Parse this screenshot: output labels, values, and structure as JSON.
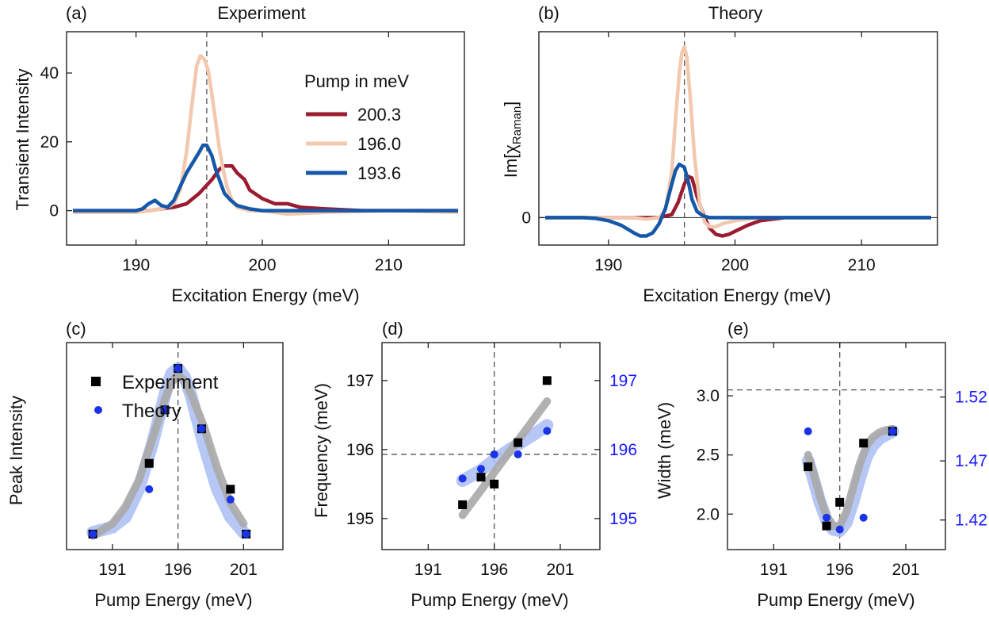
{
  "panels": {
    "a": {
      "tag": "(a)",
      "title": "Experiment",
      "xlabel": "Excitation Energy (meV)",
      "ylabel": "Transient Intensity"
    },
    "b": {
      "tag": "(b)",
      "title": "Theory",
      "xlabel": "Excitation Energy (meV)",
      "ylabel_main": "Im[χ",
      "ylabel_sub": "Raman",
      "ylabel_end": "]"
    },
    "c": {
      "tag": "(c)",
      "xlabel": "Pump Energy (meV)",
      "ylabel": "Peak Intensity"
    },
    "d": {
      "tag": "(d)",
      "xlabel": "Pump Energy (meV)",
      "ylabel": "Frequency (meV)"
    },
    "e": {
      "tag": "(e)",
      "xlabel": "Pump Energy (meV)",
      "ylabel": "Width (meV)"
    }
  },
  "colors": {
    "red": "#9b1b30",
    "peach": "#f2c8ae",
    "blue": "#1557a8",
    "gray": "#a8a8a8",
    "lightblue": "#a9bdf5",
    "marker_blue": "#1a33e6",
    "right_axis": "#1a1aff"
  },
  "chart_data": [
    {
      "id": "a",
      "type": "line",
      "title": "Experiment",
      "xlabel": "Excitation Energy (meV)",
      "ylabel": "Transient Intensity",
      "xlim": [
        184.5,
        216
      ],
      "ylim": [
        -10,
        52
      ],
      "xticks": [
        190,
        200,
        210
      ],
      "yticks": [
        0,
        20,
        40
      ],
      "vline_x": 195.6,
      "legend": {
        "title": "Pump in meV",
        "placement": "top-right",
        "entries": [
          "200.3",
          "196.0",
          "193.6"
        ]
      },
      "series": [
        {
          "name": "200.3",
          "color": "#9b1b30",
          "x": [
            185,
            187,
            189,
            191,
            192,
            193,
            194,
            195,
            196,
            196.6,
            197,
            197.6,
            198,
            198.6,
            199,
            200,
            201,
            202,
            203,
            205,
            208,
            212,
            215.5
          ],
          "y": [
            0,
            0,
            0,
            0,
            0.5,
            1,
            2,
            5,
            9,
            12,
            13,
            13,
            11,
            9,
            6,
            3.5,
            2,
            2,
            1,
            0.5,
            0,
            0,
            0
          ]
        },
        {
          "name": "196.0",
          "color": "#f2c8ae",
          "x": [
            185,
            188,
            190,
            191,
            192,
            192.5,
            193,
            193.5,
            194,
            194.4,
            194.8,
            195.1,
            195.4,
            195.7,
            196,
            196.3,
            196.6,
            196.9,
            197.2,
            197.6,
            198,
            199,
            200,
            201,
            202,
            205,
            210,
            215.5
          ],
          "y": [
            -0.5,
            -0.5,
            -0.5,
            0,
            0.5,
            1,
            2,
            6,
            17,
            30,
            42,
            45,
            44,
            41,
            34,
            26,
            18,
            12,
            7,
            3,
            1,
            0,
            0,
            -0.5,
            -1,
            -0.5,
            0,
            -0.5
          ]
        },
        {
          "name": "193.6",
          "color": "#1557a8",
          "x": [
            185,
            188,
            190,
            190.5,
            191,
            191.5,
            192,
            192.5,
            193,
            193.5,
            194,
            194.5,
            195,
            195.3,
            195.6,
            196,
            196.3,
            196.7,
            197,
            197.5,
            198,
            199,
            200,
            203,
            208,
            212,
            215.5
          ],
          "y": [
            0,
            0,
            0,
            0.5,
            2,
            3,
            1.5,
            1,
            3,
            7,
            11,
            14,
            17,
            19,
            19,
            16,
            12,
            8,
            5,
            3,
            1.5,
            0.5,
            0,
            0,
            0,
            0,
            0
          ]
        }
      ]
    },
    {
      "id": "b",
      "type": "line",
      "title": "Theory",
      "xlabel": "Excitation Energy (meV)",
      "ylabel": "Im[χRaman]",
      "xlim": [
        184.5,
        216
      ],
      "ylim": [
        -0.18,
        1.22
      ],
      "xticks": [
        190,
        200,
        210
      ],
      "yticks": [
        0
      ],
      "vline_x": 196,
      "series": [
        {
          "name": "200.3",
          "color": "#9b1b30",
          "x": [
            185,
            194,
            195,
            195.5,
            196,
            196.3,
            196.6,
            197,
            197.5,
            198,
            198.5,
            199,
            199.5,
            200,
            201,
            202,
            203,
            204,
            206,
            210,
            215.5
          ],
          "y": [
            0,
            0,
            0.02,
            0.1,
            0.22,
            0.27,
            0.26,
            0.14,
            0.02,
            -0.07,
            -0.11,
            -0.12,
            -0.11,
            -0.09,
            -0.05,
            -0.02,
            -0.01,
            0,
            0,
            0,
            0
          ]
        },
        {
          "name": "196.0",
          "color": "#f2c8ae",
          "x": [
            185,
            192,
            193,
            194,
            194.5,
            195,
            195.3,
            195.6,
            195.8,
            196,
            196.2,
            196.5,
            196.8,
            197.2,
            197.6,
            198,
            198.5,
            199,
            200,
            201,
            202,
            205,
            210,
            215.5
          ],
          "y": [
            0,
            0,
            -0.01,
            0,
            0.05,
            0.3,
            0.65,
            0.95,
            1.08,
            1.12,
            1.05,
            0.75,
            0.4,
            0.1,
            -0.03,
            -0.06,
            -0.06,
            -0.04,
            -0.02,
            -0.01,
            0,
            0,
            0,
            0
          ]
        },
        {
          "name": "193.6",
          "color": "#1557a8",
          "x": [
            185,
            188,
            189,
            190,
            191,
            192,
            192.5,
            193,
            193.5,
            194,
            194.5,
            195,
            195.3,
            195.6,
            196,
            196.3,
            196.6,
            197,
            197.5,
            198,
            199,
            200,
            205,
            215.5
          ],
          "y": [
            0,
            0,
            -0.005,
            -0.02,
            -0.05,
            -0.1,
            -0.12,
            -0.12,
            -0.1,
            -0.04,
            0.06,
            0.22,
            0.31,
            0.35,
            0.33,
            0.24,
            0.12,
            0.04,
            0.01,
            0,
            0,
            0,
            0,
            0
          ]
        }
      ]
    },
    {
      "id": "c",
      "type": "scatter",
      "xlabel": "Pump Energy (meV)",
      "ylabel": "Peak Intensity",
      "xlim": [
        187.5,
        204
      ],
      "ylim": [
        -0.05,
        1.15
      ],
      "xticks": [
        191,
        196,
        201
      ],
      "vline_x": 196,
      "legend": {
        "placement": "top-left",
        "entries": [
          "Experiment",
          "Theory"
        ]
      },
      "series": [
        {
          "name": "Experiment",
          "marker": "square",
          "color": "#000000",
          "x": [
            189.5,
            193.8,
            195,
            196,
            197.8,
            200,
            201.2
          ],
          "y": [
            0.04,
            0.45,
            0.76,
            1.0,
            0.65,
            0.3,
            0.04
          ]
        },
        {
          "name": "Theory",
          "marker": "circle",
          "color": "#1a33e6",
          "x": [
            189.5,
            193.8,
            195,
            196,
            197.8,
            200,
            201.2
          ],
          "y": [
            0.04,
            0.3,
            0.76,
            1.0,
            0.65,
            0.24,
            0.04
          ]
        }
      ],
      "fits": [
        {
          "color": "#a9bdf5",
          "x": [
            189.5,
            191,
            192,
            193,
            194,
            195,
            195.5,
            196,
            196.5,
            197,
            198,
            199,
            200,
            201
          ],
          "y": [
            0.05,
            0.08,
            0.14,
            0.3,
            0.55,
            0.85,
            0.97,
            1.0,
            0.95,
            0.84,
            0.55,
            0.3,
            0.14,
            0.05
          ]
        },
        {
          "color": "#a8a8a8",
          "x": [
            189.5,
            191,
            192,
            193,
            194,
            195,
            195.5,
            196,
            196.5,
            197,
            198,
            199,
            200,
            201
          ],
          "y": [
            0.03,
            0.1,
            0.2,
            0.35,
            0.58,
            0.82,
            0.92,
            0.96,
            0.93,
            0.85,
            0.66,
            0.42,
            0.22,
            0.1
          ]
        }
      ]
    },
    {
      "id": "d",
      "type": "scatter",
      "xlabel": "Pump Energy (meV)",
      "ylabel": "Frequency (meV)",
      "xlim": [
        187.5,
        204
      ],
      "ylim": [
        194.55,
        197.55
      ],
      "xticks": [
        191,
        196,
        201
      ],
      "yticks": [
        195,
        196,
        197
      ],
      "y2ticks": [
        {
          "label": "195",
          "y": 195
        },
        {
          "label": "196",
          "y": 196
        },
        {
          "label": "197",
          "y": 197
        }
      ],
      "vline_x": 196,
      "hline_y": 195.93,
      "series": [
        {
          "name": "Experiment",
          "marker": "square",
          "color": "#000000",
          "x": [
            193.6,
            195,
            196,
            197.8,
            200
          ],
          "y": [
            195.2,
            195.6,
            195.5,
            196.1,
            197
          ]
        },
        {
          "name": "Theory",
          "marker": "circle",
          "color": "#1a33e6",
          "x": [
            193.6,
            195,
            196,
            197.8,
            200
          ],
          "y": [
            195.58,
            195.72,
            195.93,
            195.93,
            196.27
          ]
        }
      ],
      "fits": [
        {
          "color": "#a9bdf5",
          "x": [
            193.6,
            195,
            196,
            197,
            198,
            199,
            200
          ],
          "y": [
            195.55,
            195.7,
            195.85,
            195.98,
            196.1,
            196.22,
            196.35
          ]
        },
        {
          "color": "#a8a8a8",
          "x": [
            193.6,
            200
          ],
          "y": [
            195.05,
            196.7
          ]
        }
      ]
    },
    {
      "id": "e",
      "type": "scatter",
      "xlabel": "Pump Energy (meV)",
      "ylabel": "Width (meV)",
      "xlim": [
        187.5,
        204
      ],
      "ylim": [
        1.7,
        3.45
      ],
      "xticks": [
        191,
        196,
        201
      ],
      "yticks": [
        2.0,
        2.5,
        3.0
      ],
      "y2ticks": [
        {
          "label": "1.42",
          "y": 1.95
        },
        {
          "label": "1.47",
          "y": 2.45
        },
        {
          "label": "1.52",
          "y": 2.99
        }
      ],
      "vline_x": 196,
      "hline_y": 3.05,
      "series": [
        {
          "name": "Experiment",
          "marker": "square",
          "color": "#000000",
          "x": [
            193.6,
            195,
            196,
            197.8,
            200
          ],
          "y": [
            2.4,
            1.9,
            2.1,
            2.6,
            2.7
          ]
        },
        {
          "name": "Theory",
          "marker": "circle",
          "color": "#1a33e6",
          "x": [
            193.6,
            195,
            196,
            197.8,
            200
          ],
          "y": [
            2.7,
            1.97,
            1.87,
            1.97,
            2.7
          ]
        }
      ],
      "fits": [
        {
          "color": "#a9bdf5",
          "x": [
            193.6,
            194,
            194.5,
            195,
            195.5,
            196,
            196.5,
            197,
            197.5,
            198,
            198.5,
            199,
            199.5,
            200
          ],
          "y": [
            2.45,
            2.3,
            2.1,
            1.95,
            1.87,
            1.86,
            1.93,
            2.1,
            2.3,
            2.48,
            2.58,
            2.64,
            2.67,
            2.7
          ]
        },
        {
          "color": "#a8a8a8",
          "x": [
            193.6,
            194,
            194.5,
            195,
            195.5,
            196,
            196.5,
            197,
            197.5,
            198,
            198.5,
            199,
            199.5,
            200
          ],
          "y": [
            2.5,
            2.35,
            2.15,
            1.98,
            1.9,
            1.9,
            2.02,
            2.22,
            2.42,
            2.57,
            2.65,
            2.69,
            2.71,
            2.72
          ]
        }
      ]
    }
  ]
}
